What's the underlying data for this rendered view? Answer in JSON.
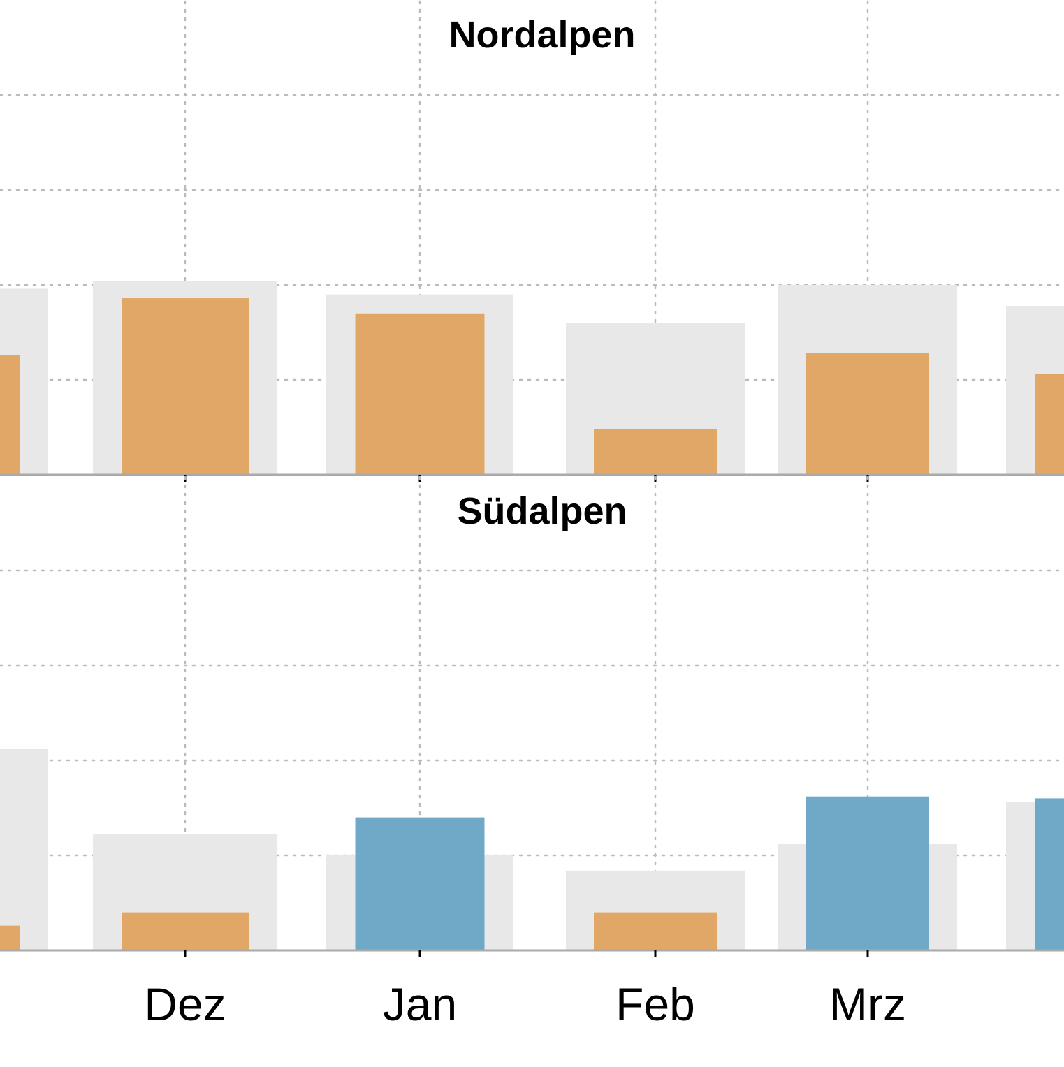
{
  "chart_data": [
    {
      "type": "bar",
      "title": "Nordalpen",
      "categories": [
        "",
        "Dez",
        "Jan",
        "Feb",
        "Mrz",
        ""
      ],
      "series": [
        {
          "role": "reference",
          "color": "#e8e8e8",
          "values": [
            0.98,
            1.02,
            0.95,
            0.8,
            1.0,
            0.89
          ]
        },
        {
          "role": "current",
          "values": [
            0.63,
            0.93,
            0.85,
            0.24,
            0.64,
            0.53
          ],
          "colors": [
            "#e1a766",
            "#e1a766",
            "#e1a766",
            "#e1a766",
            "#e1a766",
            "#e1a766"
          ]
        }
      ],
      "ylim": [
        0,
        2.5
      ],
      "grid": true
    },
    {
      "type": "bar",
      "title": "Südalpen",
      "categories": [
        "",
        "Dez",
        "Jan",
        "Feb",
        "Mrz",
        ""
      ],
      "series": [
        {
          "role": "reference",
          "color": "#e8e8e8",
          "values": [
            1.06,
            0.61,
            0.5,
            0.42,
            0.56,
            0.78
          ]
        },
        {
          "role": "current",
          "values": [
            0.13,
            0.2,
            0.7,
            0.2,
            0.81,
            0.8
          ],
          "colors": [
            "#e1a766",
            "#e1a766",
            "#70a9c7",
            "#e1a766",
            "#70a9c7",
            "#70a9c7"
          ]
        }
      ],
      "ylim": [
        0,
        2.5
      ],
      "grid": true
    }
  ],
  "colors": {
    "deficit": "#e1a766",
    "surplus": "#70a9c7",
    "reference": "#e8e8e8",
    "grid": "#bbbbbb",
    "axis": "#aaaaaa"
  }
}
